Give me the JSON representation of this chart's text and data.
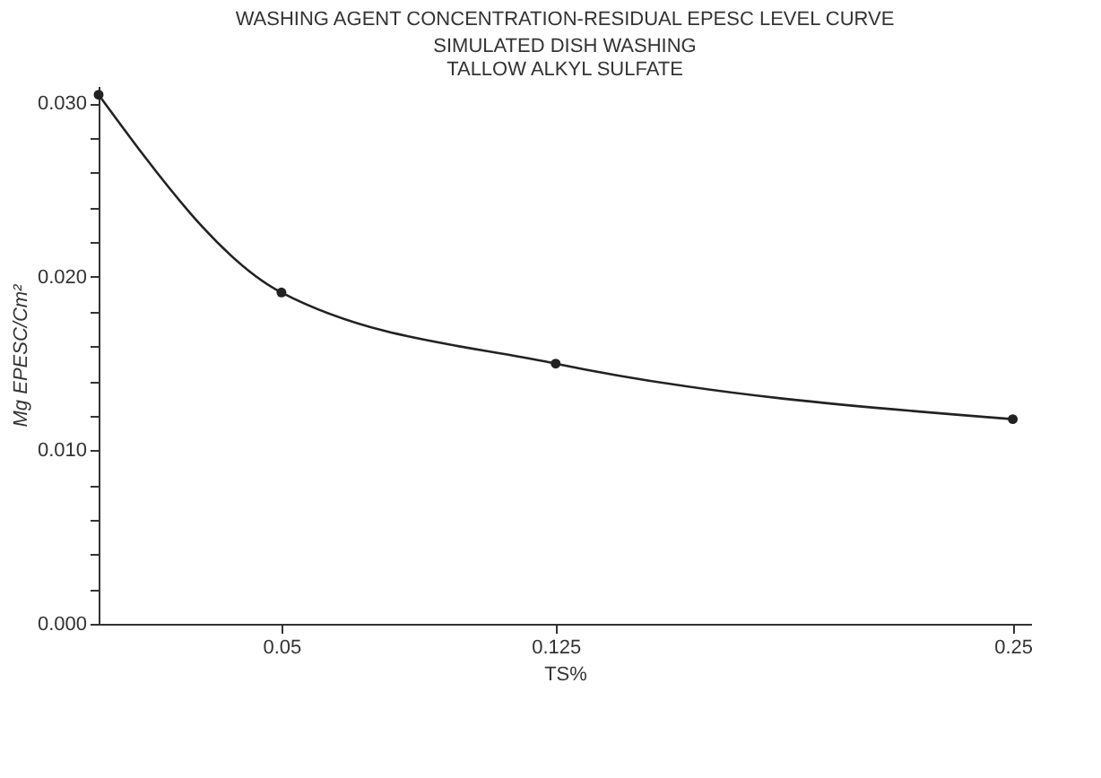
{
  "chart_data": {
    "type": "line",
    "title": "WASHING AGENT CONCENTRATION-RESIDUAL EPESC LEVEL CURVE",
    "subtitle": [
      "SIMULATED DISH WASHING",
      "TALLOW ALKYL SULFATE"
    ],
    "xlabel": "TS%",
    "ylabel": "Mg EPESC/Cm²",
    "x": [
      0,
      0.05,
      0.125,
      0.25
    ],
    "series": [
      {
        "color": "#222222",
        "values": [
          0.0305,
          0.0191,
          0.015,
          0.0118
        ]
      }
    ],
    "xlim": [
      0,
      0.255
    ],
    "xticks": [
      0.05,
      0.125,
      0.25
    ],
    "ylim": [
      0,
      0.031
    ],
    "yticks": [
      {
        "value": 0,
        "label": "0.000"
      },
      {
        "value": 0.002,
        "label": null
      },
      {
        "value": 0.004,
        "label": null
      },
      {
        "value": 0.006,
        "label": null
      },
      {
        "value": 0.008,
        "label": null
      },
      {
        "value": 0.01,
        "label": "0.010"
      },
      {
        "value": 0.012,
        "label": null
      },
      {
        "value": 0.014,
        "label": null
      },
      {
        "value": 0.016,
        "label": null
      },
      {
        "value": 0.018,
        "label": null
      },
      {
        "value": 0.02,
        "label": "0.020"
      },
      {
        "value": 0.022,
        "label": null
      },
      {
        "value": 0.024,
        "label": null
      },
      {
        "value": 0.026,
        "label": null
      },
      {
        "value": 0.028,
        "label": null
      },
      {
        "value": 0.03,
        "label": "0.030"
      }
    ],
    "grid": false,
    "marker": "circle",
    "line_style": "solid"
  }
}
